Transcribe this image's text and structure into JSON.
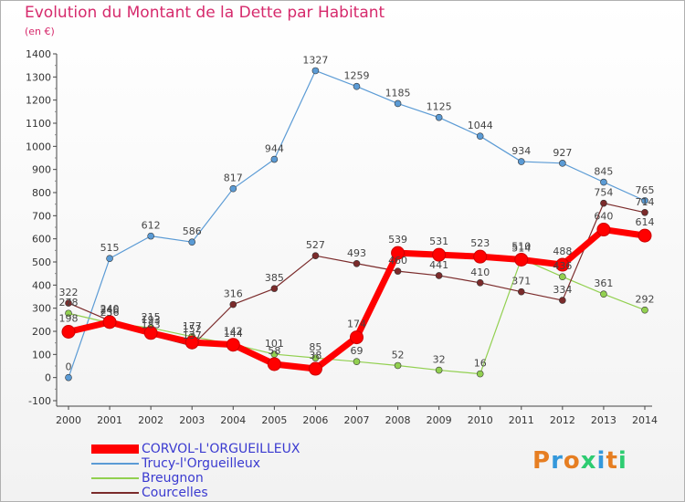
{
  "chart_data": {
    "type": "line",
    "title": "Evolution du Montant de la Dette par Habitant",
    "subtitle": "(en €)",
    "x": [
      "2000",
      "2001",
      "2002",
      "2003",
      "2004",
      "2005",
      "2006",
      "2007",
      "2008",
      "2009",
      "2010",
      "2011",
      "2012",
      "2013",
      "2014"
    ],
    "ylim": [
      -100,
      1400
    ],
    "yticks": [
      -100,
      0,
      100,
      200,
      300,
      400,
      500,
      600,
      700,
      800,
      900,
      1000,
      1100,
      1200,
      1300,
      1400
    ],
    "grid": false,
    "legend_position": "bottom-left",
    "series": [
      {
        "name": "CORVOL-L'ORGUEILLEUX",
        "color": "#ff0000",
        "values": [
          198,
          240,
          193,
          152,
          142,
          58,
          38,
          174,
          539,
          531,
          523,
          510,
          488,
          640,
          614
        ]
      },
      {
        "name": "Trucy-l'Orgueilleux",
        "color": "#5b9bd5",
        "values": [
          0,
          515,
          612,
          586,
          817,
          944,
          1327,
          1259,
          1185,
          1125,
          1044,
          934,
          927,
          845,
          765
        ]
      },
      {
        "name": "Breugnon",
        "color": "#92d050",
        "values": [
          278,
          236,
          215,
          177,
          144,
          101,
          85,
          69,
          52,
          32,
          16,
          514,
          436,
          361,
          292
        ]
      },
      {
        "name": "Courcelles",
        "color": "#7b2b2b",
        "values": [
          322,
          246,
          183,
          137,
          316,
          385,
          527,
          493,
          460,
          441,
          410,
          371,
          334,
          754,
          714
        ]
      }
    ]
  },
  "logo": {
    "text": "Proxiti",
    "colors": [
      "#e67e22",
      "#3498db",
      "#e67e22",
      "#2ecc71",
      "#3498db",
      "#e67e22",
      "#2ecc71"
    ]
  }
}
